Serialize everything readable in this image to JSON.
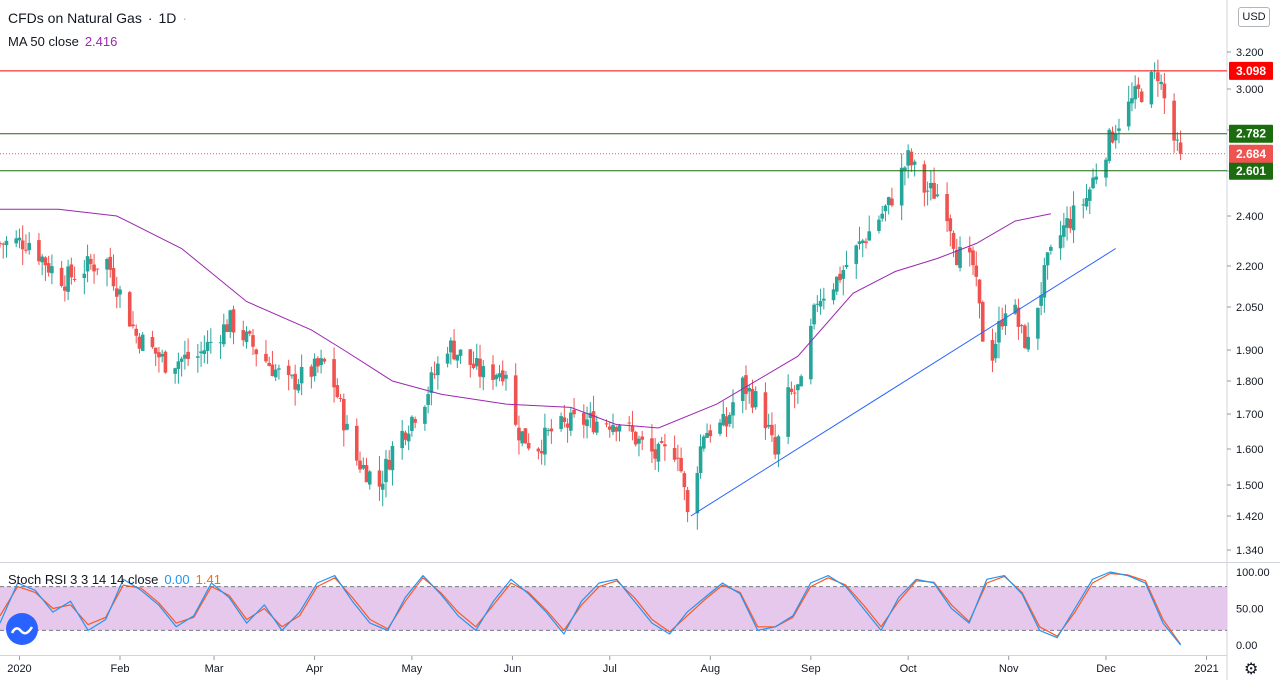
{
  "header": {
    "symbol": "CFDs on Natural Gas",
    "separator": "·",
    "interval": "1D",
    "currency_button": "USD"
  },
  "ma_legend": {
    "label": "MA 50 close",
    "value": "2.416"
  },
  "stoch_legend": {
    "label": "Stoch RSI 3 3 14 14 close",
    "k": "0.00",
    "d": "1.41"
  },
  "colors": {
    "up": "#26a69a",
    "down": "#ef5350",
    "ma": "#9c27b0",
    "resistance": "#ff0000",
    "support": "#1b6b0f",
    "trend": "#2962ff",
    "stoch_k": "#2196f3",
    "stoch_d": "#ff5722",
    "stoch_band": "#e1bee7"
  },
  "icons": {
    "settings": "gear-icon",
    "logo": "tradingview-logo-icon"
  },
  "chart_data": [
    {
      "type": "candlestick",
      "ylim": [
        1.31,
        3.31
      ],
      "price_ticks": [
        "3.200",
        "3.000",
        "2.800",
        "2.600",
        "2.400",
        "2.200",
        "2.050",
        "1.900",
        "1.800",
        "1.700",
        "1.600",
        "1.500",
        "1.420",
        "1.340"
      ],
      "time_labels": [
        "2020",
        "Feb",
        "Mar",
        "Apr",
        "May",
        "Jun",
        "Jul",
        "Aug",
        "Sep",
        "Oct",
        "Nov",
        "Dec",
        "2021"
      ],
      "time_label_days": [
        0,
        31,
        60,
        91,
        121,
        152,
        182,
        213,
        244,
        274,
        305,
        335,
        366
      ],
      "start_day": -6,
      "candles_count": 224,
      "horizontal_lines": [
        {
          "value": 3.098,
          "label": "3.098",
          "kind": "resistance"
        },
        {
          "value": 2.782,
          "label": "2.782",
          "kind": "support"
        },
        {
          "value": 2.601,
          "label": "2.601",
          "kind": "support"
        }
      ],
      "last_price": {
        "value": 2.684,
        "label": "2.684"
      },
      "trendline": {
        "from": [
          207,
          1.42
        ],
        "to": [
          338,
          2.27
        ]
      },
      "ma_series": [
        [
          -6,
          2.43
        ],
        [
          12,
          2.43
        ],
        [
          30,
          2.4
        ],
        [
          50,
          2.27
        ],
        [
          70,
          2.07
        ],
        [
          90,
          1.97
        ],
        [
          100,
          1.9
        ],
        [
          115,
          1.8
        ],
        [
          130,
          1.76
        ],
        [
          150,
          1.73
        ],
        [
          170,
          1.72
        ],
        [
          184,
          1.67
        ],
        [
          197,
          1.66
        ],
        [
          215,
          1.73
        ],
        [
          240,
          1.88
        ],
        [
          257,
          2.1
        ],
        [
          270,
          2.18
        ],
        [
          283,
          2.23
        ],
        [
          295,
          2.29
        ],
        [
          307,
          2.38
        ],
        [
          318,
          2.41
        ]
      ],
      "price_path": [
        [
          -6,
          2.29
        ],
        [
          3,
          2.3
        ],
        [
          9,
          2.2
        ],
        [
          14,
          2.15
        ],
        [
          21,
          2.2
        ],
        [
          27,
          2.22
        ],
        [
          36,
          1.95
        ],
        [
          45,
          1.86
        ],
        [
          55,
          1.88
        ],
        [
          65,
          2.0
        ],
        [
          73,
          1.9
        ],
        [
          83,
          1.79
        ],
        [
          95,
          1.86
        ],
        [
          103,
          1.58
        ],
        [
          111,
          1.5
        ],
        [
          115,
          1.6
        ],
        [
          125,
          1.75
        ],
        [
          132,
          1.92
        ],
        [
          143,
          1.82
        ],
        [
          150,
          1.84
        ],
        [
          153,
          1.66
        ],
        [
          159,
          1.6
        ],
        [
          164,
          1.65
        ],
        [
          172,
          1.68
        ],
        [
          185,
          1.68
        ],
        [
          191,
          1.62
        ],
        [
          196,
          1.58
        ],
        [
          203,
          1.6
        ],
        [
          206,
          1.42
        ],
        [
          211,
          1.65
        ],
        [
          218,
          1.67
        ],
        [
          222,
          1.8
        ],
        [
          229,
          1.72
        ],
        [
          233,
          1.58
        ],
        [
          237,
          1.75
        ],
        [
          241,
          1.78
        ],
        [
          246,
          2.08
        ],
        [
          252,
          2.15
        ],
        [
          260,
          2.3
        ],
        [
          268,
          2.45
        ],
        [
          274,
          2.66
        ],
        [
          279,
          2.52
        ],
        [
          285,
          2.49
        ],
        [
          289,
          2.25
        ],
        [
          294,
          2.2
        ],
        [
          297,
          1.95
        ],
        [
          299,
          1.85
        ],
        [
          305,
          2.1
        ],
        [
          309,
          1.95
        ],
        [
          311,
          1.92
        ],
        [
          317,
          2.21
        ],
        [
          322,
          2.35
        ],
        [
          329,
          2.48
        ],
        [
          332,
          2.6
        ],
        [
          338,
          2.82
        ],
        [
          344,
          2.96
        ],
        [
          348,
          3.02
        ],
        [
          351,
          3.09
        ],
        [
          355,
          2.8
        ],
        [
          357,
          2.7
        ],
        [
          358,
          2.684
        ]
      ]
    },
    {
      "type": "line",
      "title": "Stoch RSI 3 3 14 14 close",
      "ylim": [
        0,
        100
      ],
      "ticks": [
        "100.00",
        "50.00",
        "0.00"
      ],
      "bands": [
        20,
        80
      ],
      "series": [
        {
          "name": "K",
          "values": [
            30,
            85,
            75,
            45,
            60,
            20,
            35,
            90,
            75,
            55,
            25,
            40,
            85,
            65,
            30,
            55,
            20,
            45,
            85,
            95,
            60,
            30,
            20,
            65,
            95,
            70,
            40,
            20,
            60,
            90,
            70,
            45,
            15,
            60,
            85,
            90,
            60,
            30,
            15,
            45,
            65,
            85,
            70,
            20,
            25,
            40,
            85,
            95,
            80,
            50,
            20,
            65,
            90,
            85,
            50,
            30,
            90,
            95,
            70,
            20,
            10,
            50,
            90,
            100,
            95,
            85,
            30,
            0
          ]
        },
        {
          "name": "D",
          "values": [
            40,
            80,
            72,
            50,
            55,
            28,
            38,
            82,
            78,
            58,
            30,
            38,
            80,
            68,
            35,
            50,
            25,
            40,
            80,
            92,
            65,
            35,
            22,
            60,
            92,
            72,
            45,
            25,
            55,
            85,
            72,
            48,
            20,
            55,
            80,
            88,
            65,
            35,
            18,
            40,
            62,
            82,
            72,
            25,
            25,
            38,
            80,
            92,
            82,
            55,
            25,
            60,
            88,
            86,
            55,
            32,
            85,
            94,
            72,
            25,
            12,
            45,
            85,
            98,
            96,
            88,
            35,
            1
          ]
        }
      ]
    }
  ]
}
